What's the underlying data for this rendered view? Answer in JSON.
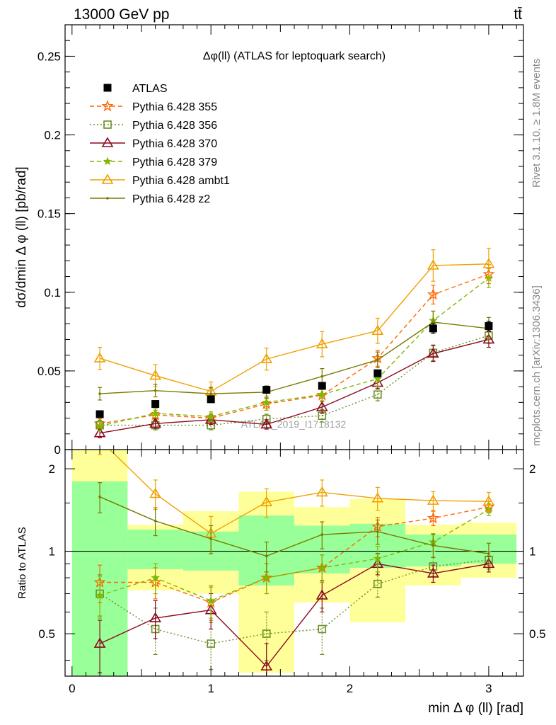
{
  "header": {
    "energy_label": "13000 GeV pp",
    "process_label": "tt̄"
  },
  "side_labels": {
    "rivet": "Rivet 3.1.10, ≥ 1.8M events",
    "mcplots": "mcplots.cern.ch [arXiv:1306.3436]"
  },
  "watermark": "ATLAS_2019_I1718132",
  "chart_data": [
    {
      "type": "scatter",
      "panel": "main",
      "title": "Δφ(ll) (ATLAS for leptoquark search)",
      "xlabel": "min Δ φ (ll) [rad]",
      "ylabel": "dσ/dmin Δ φ (ll) [pb/rad]",
      "xlim": [
        -0.05,
        3.25
      ],
      "ylim": [
        0,
        0.27
      ],
      "yticks": [
        0,
        0.05,
        0.1,
        0.15,
        0.2,
        0.25
      ],
      "ytick_labels": [
        "0",
        "0.05",
        "0.1",
        "0.15",
        "0.2",
        "0.25"
      ],
      "legend_position": "top-left",
      "x": [
        0.2,
        0.6,
        1.0,
        1.4,
        1.8,
        2.2,
        2.6,
        3.0
      ],
      "series": [
        {
          "name": "ATLAS",
          "color": "#000000",
          "marker": "square-filled",
          "line": "none",
          "values": [
            0.0225,
            0.029,
            0.032,
            0.038,
            0.0405,
            0.0485,
            0.077,
            0.0785
          ],
          "errors": [
            0.0015,
            0.0015,
            0.0015,
            0.0015,
            0.0015,
            0.002,
            0.003,
            0.003
          ]
        },
        {
          "name": "Pythia 6.428 355",
          "color": "#ff6600",
          "marker": "star-open",
          "line": "dashed",
          "values": [
            0.0165,
            0.022,
            0.02,
            0.029,
            0.0345,
            0.058,
            0.0985,
            0.1115
          ],
          "errors": [
            0.003,
            0.003,
            0.003,
            0.004,
            0.004,
            0.005,
            0.006,
            0.006
          ]
        },
        {
          "name": "Pythia 6.428 356",
          "color": "#6b8e23",
          "marker": "square-open",
          "line": "dotted",
          "values": [
            0.0155,
            0.0155,
            0.0155,
            0.0195,
            0.0215,
            0.035,
            0.0615,
            0.0725
          ],
          "errors": [
            0.003,
            0.003,
            0.003,
            0.003,
            0.004,
            0.004,
            0.005,
            0.005
          ]
        },
        {
          "name": "Pythia 6.428 370",
          "color": "#8b0a1e",
          "marker": "triangle-open",
          "line": "solid",
          "values": [
            0.0105,
            0.0165,
            0.019,
            0.016,
            0.027,
            0.0425,
            0.061,
            0.07
          ],
          "errors": [
            0.003,
            0.003,
            0.003,
            0.003,
            0.004,
            0.004,
            0.005,
            0.005
          ]
        },
        {
          "name": "Pythia 6.428 379",
          "color": "#7fb800",
          "marker": "star-filled",
          "line": "dashed",
          "values": [
            0.015,
            0.023,
            0.021,
            0.03,
            0.035,
            0.045,
            0.082,
            0.109
          ],
          "errors": [
            0.003,
            0.003,
            0.003,
            0.004,
            0.004,
            0.005,
            0.006,
            0.006
          ]
        },
        {
          "name": "Pythia 6.428 ambt1",
          "color": "#f0a000",
          "marker": "triangle-open",
          "line": "solid",
          "values": [
            0.058,
            0.047,
            0.037,
            0.0575,
            0.067,
            0.0755,
            0.117,
            0.118
          ],
          "errors": [
            0.007,
            0.007,
            0.006,
            0.007,
            0.008,
            0.008,
            0.01,
            0.01
          ]
        },
        {
          "name": "Pythia 6.428 z2",
          "color": "#7a7a00",
          "marker": "dot",
          "line": "solid",
          "values": [
            0.0355,
            0.0375,
            0.0355,
            0.0365,
            0.0465,
            0.057,
            0.081,
            0.077
          ],
          "errors": [
            0.004,
            0.004,
            0.004,
            0.004,
            0.005,
            0.005,
            0.007,
            0.007
          ]
        }
      ]
    },
    {
      "type": "scatter",
      "panel": "ratio",
      "xlabel": "min Δ φ (ll) [rad]",
      "ylabel": "Ratio to ATLAS",
      "xlim": [
        -0.05,
        3.25
      ],
      "ylim": [
        0.35,
        2.35
      ],
      "log_y": true,
      "xticks": [
        0,
        1,
        2,
        3
      ],
      "xtick_labels": [
        "0",
        "1",
        "2",
        "3"
      ],
      "yticks": [
        0.5,
        1,
        2
      ],
      "ytick_labels": [
        "0.5",
        "1",
        "2"
      ],
      "reference_line": 1,
      "bin_edges": [
        0.0,
        0.4,
        0.8,
        1.2,
        1.6,
        2.0,
        2.4,
        2.8,
        3.2
      ],
      "band_inner": [
        [
          0.35,
          1.8
        ],
        [
          0.86,
          1.2
        ],
        [
          0.85,
          1.18
        ],
        [
          0.75,
          1.35
        ],
        [
          0.83,
          1.24
        ],
        [
          0.87,
          1.26
        ],
        [
          0.88,
          1.15
        ],
        [
          0.9,
          1.15
        ]
      ],
      "band_outer": [
        [
          0.35,
          2.35
        ],
        [
          0.72,
          1.25
        ],
        [
          0.7,
          1.4
        ],
        [
          0.36,
          1.65
        ],
        [
          0.65,
          1.45
        ],
        [
          0.55,
          1.55
        ],
        [
          0.75,
          1.25
        ],
        [
          0.8,
          1.27
        ]
      ],
      "band_inner_color": "#99ff99",
      "band_outer_color": "#ffff99",
      "x": [
        0.2,
        0.6,
        1.0,
        1.4,
        1.8,
        2.2,
        2.6,
        3.0
      ],
      "series": [
        {
          "name": "Pythia 6.428 355",
          "color": "#ff6600",
          "marker": "star-open",
          "line": "dashed",
          "values": [
            0.77,
            0.77,
            0.65,
            0.8,
            0.87,
            1.23,
            1.32,
            1.45
          ],
          "errors": [
            0.12,
            0.1,
            0.09,
            0.1,
            0.1,
            0.1,
            0.08,
            0.07
          ]
        },
        {
          "name": "Pythia 6.428 356",
          "color": "#6b8e23",
          "marker": "square-open",
          "line": "dotted",
          "values": [
            0.7,
            0.52,
            0.46,
            0.5,
            0.52,
            0.76,
            0.88,
            0.93
          ],
          "errors": [
            0.12,
            0.1,
            0.09,
            0.1,
            0.1,
            0.08,
            0.07,
            0.07
          ]
        },
        {
          "name": "Pythia 6.428 370",
          "color": "#8b0a1e",
          "marker": "triangle-open",
          "line": "solid",
          "values": [
            0.46,
            0.57,
            0.61,
            0.38,
            0.69,
            0.9,
            0.83,
            0.9
          ],
          "errors": [
            0.1,
            0.09,
            0.09,
            0.08,
            0.09,
            0.08,
            0.06,
            0.06
          ]
        },
        {
          "name": "Pythia 6.428 379",
          "color": "#7fb800",
          "marker": "star-filled",
          "line": "dashed",
          "values": [
            0.69,
            0.8,
            0.66,
            0.8,
            0.87,
            0.94,
            1.08,
            1.42
          ],
          "errors": [
            0.12,
            0.1,
            0.09,
            0.1,
            0.1,
            0.1,
            0.08,
            0.07
          ]
        },
        {
          "name": "Pythia 6.428 ambt1",
          "color": "#f0a000",
          "marker": "triangle-open",
          "line": "solid",
          "values": [
            2.55,
            1.62,
            1.16,
            1.51,
            1.64,
            1.56,
            1.53,
            1.52
          ],
          "errors": [
            0.3,
            0.2,
            0.18,
            0.18,
            0.18,
            0.15,
            0.12,
            0.12
          ]
        },
        {
          "name": "Pythia 6.428 z2",
          "color": "#7a7a00",
          "marker": "dot",
          "line": "solid",
          "values": [
            1.58,
            1.29,
            1.11,
            0.96,
            1.15,
            1.18,
            1.05,
            0.98
          ],
          "errors": [
            0.2,
            0.15,
            0.13,
            0.12,
            0.13,
            0.12,
            0.1,
            0.09
          ]
        }
      ]
    }
  ]
}
